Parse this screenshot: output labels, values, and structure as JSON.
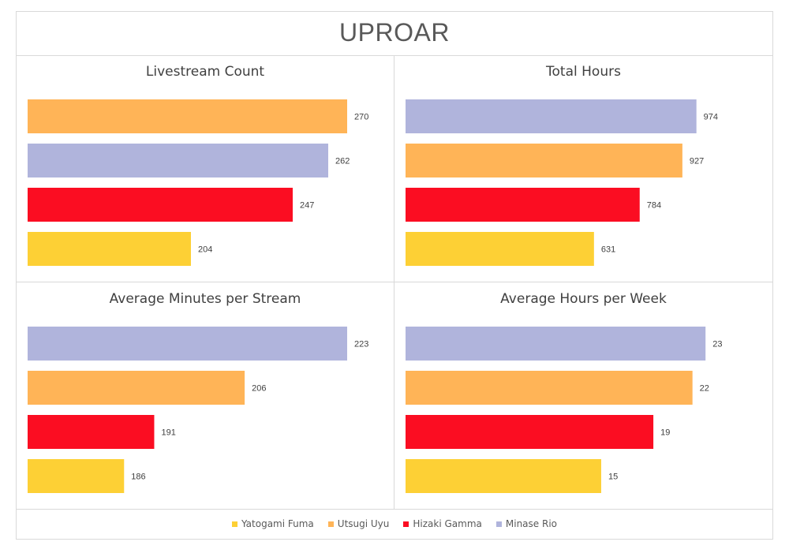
{
  "title": "UPROAR",
  "colors": {
    "Yatogami Fuma": "#fdd035",
    "Utsugi Uyu": "#ffb457",
    "Hizaki Gamma": "#fb0d22",
    "Minase Rio": "#b0b4dc"
  },
  "legend": {
    "items": [
      {
        "label": "Yatogami Fuma",
        "color": "#fdd035"
      },
      {
        "label": "Utsugi Uyu",
        "color": "#ffb457"
      },
      {
        "label": "Hizaki Gamma",
        "color": "#fb0d22"
      },
      {
        "label": "Minase Rio",
        "color": "#b0b4dc"
      }
    ]
  },
  "chart_data": [
    {
      "type": "bar",
      "orientation": "horizontal",
      "title": "Livestream Count",
      "categories": [
        "Utsugi Uyu",
        "Minase Rio",
        "Hizaki Gamma",
        "Yatogami Fuma"
      ],
      "values": [
        270,
        262,
        247,
        204
      ],
      "labels": [
        "270",
        "262",
        "247",
        "204"
      ],
      "xlim": [
        135,
        270
      ]
    },
    {
      "type": "bar",
      "orientation": "horizontal",
      "title": "Total Hours",
      "categories": [
        "Minase Rio",
        "Utsugi Uyu",
        "Hizaki Gamma",
        "Yatogami Fuma"
      ],
      "values": [
        974,
        927,
        784,
        631
      ],
      "labels": [
        "974",
        "927",
        "784",
        "631"
      ],
      "xlim": [
        0,
        1070
      ]
    },
    {
      "type": "bar",
      "orientation": "horizontal",
      "title": "Average Minutes per Stream",
      "categories": [
        "Minase Rio",
        "Utsugi Uyu",
        "Hizaki Gamma",
        "Yatogami Fuma"
      ],
      "values": [
        223,
        206,
        191,
        186
      ],
      "labels": [
        "223",
        "206",
        "191",
        "186"
      ],
      "xlim": [
        170,
        223
      ]
    },
    {
      "type": "bar",
      "orientation": "horizontal",
      "title": "Average Hours per Week",
      "categories": [
        "Minase Rio",
        "Utsugi Uyu",
        "Hizaki Gamma",
        "Yatogami Fuma"
      ],
      "values": [
        23,
        22,
        19,
        15
      ],
      "labels": [
        "23",
        "22",
        "19",
        "15"
      ],
      "xlim": [
        0,
        24.5
      ]
    }
  ]
}
